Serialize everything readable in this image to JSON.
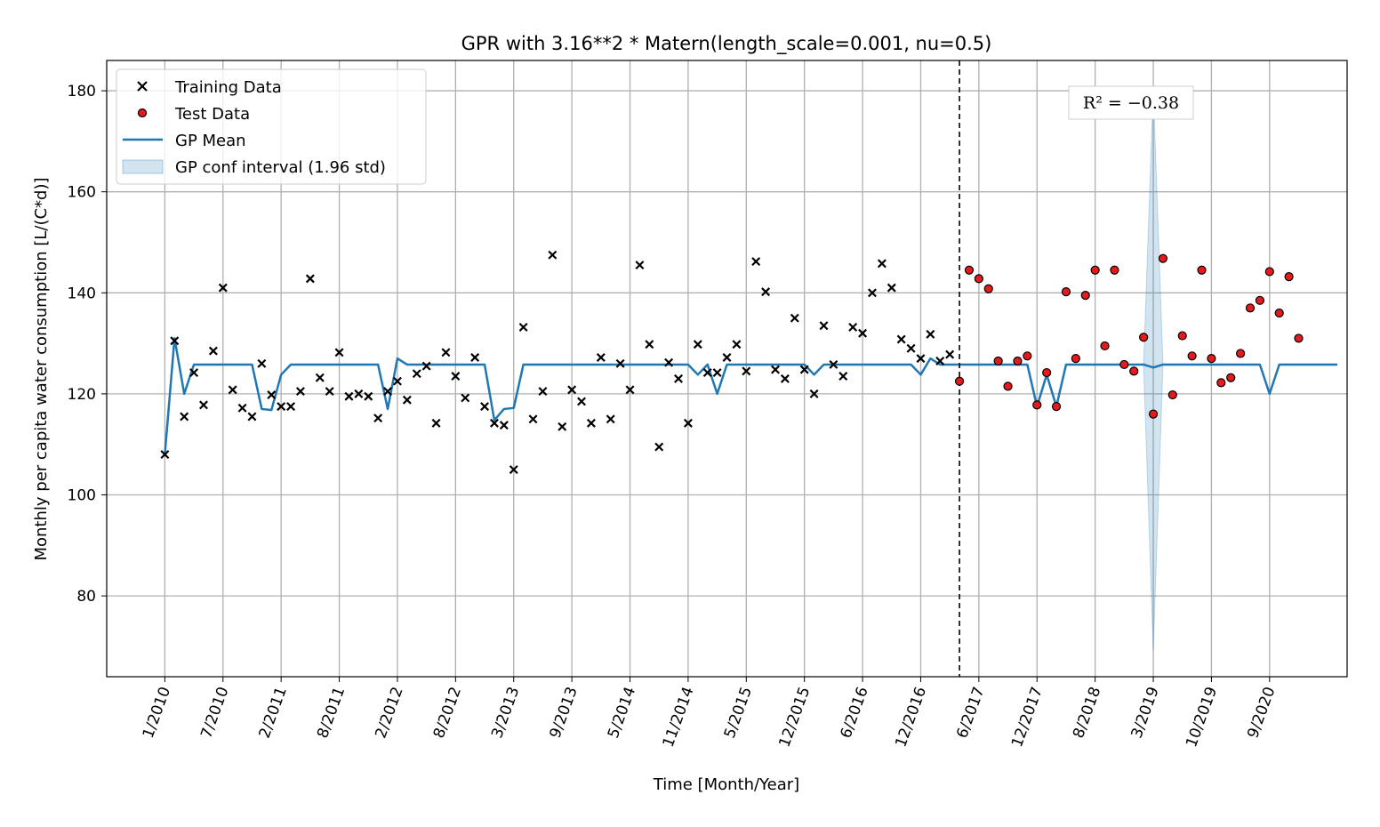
{
  "chart_data": {
    "type": "line",
    "title": "GPR with 3.16**2 * Matern(length_scale=0.001, nu=0.5)",
    "xlabel": "Time [Month/Year]",
    "ylabel": "Monthly per capita water consumption [L/(C*d)]",
    "x_ticks": [
      "1/2010",
      "7/2010",
      "2/2011",
      "8/2011",
      "2/2012",
      "8/2012",
      "3/2013",
      "9/2013",
      "5/2014",
      "11/2014",
      "5/2015",
      "12/2015",
      "6/2016",
      "12/2016",
      "6/2017",
      "12/2017",
      "8/2018",
      "3/2019",
      "10/2019",
      "9/2020"
    ],
    "x_tick_index": [
      0,
      6,
      12,
      18,
      24,
      30,
      36,
      42,
      48,
      54,
      60,
      66,
      72,
      78,
      84,
      90,
      96,
      102,
      108,
      114
    ],
    "xlim": [
      -6,
      122
    ],
    "ylim": [
      64,
      186
    ],
    "y_ticks": [
      80,
      100,
      120,
      140,
      160,
      180
    ],
    "grid": true,
    "legend_position": "top-left",
    "split_index": 82,
    "annotation": {
      "text": "R² = −0.38",
      "position": "top-right"
    },
    "legend": [
      {
        "label": "Training Data"
      },
      {
        "label": "Test Data"
      },
      {
        "label": "GP Mean"
      },
      {
        "label": "GP conf interval (1.96 std)"
      }
    ],
    "training": [
      108,
      130.5,
      115.5,
      124.2,
      117.8,
      128.5,
      141,
      120.8,
      117.2,
      115.5,
      126,
      119.8,
      117.5,
      117.5,
      120.5,
      142.8,
      123.2,
      120.5,
      128.2,
      119.5,
      120,
      119.5,
      115.2,
      120.5,
      122.5,
      118.8,
      124,
      125.5,
      114.2,
      128.2,
      123.5,
      119.2,
      127.2,
      117.5,
      114.2,
      113.8,
      105,
      133.2,
      115,
      120.5,
      147.5,
      113.5,
      120.8,
      118.5,
      114.2,
      127.2,
      115,
      126,
      120.8,
      145.5,
      129.8,
      109.5,
      126.2,
      123,
      114.2,
      129.8,
      124.2,
      124.2,
      127.2,
      129.8,
      124.5,
      146.2,
      140.2,
      124.8,
      123,
      135,
      124.8,
      120,
      133.5,
      125.8,
      123.5,
      133.2,
      132,
      140,
      145.8,
      141,
      130.8,
      129,
      127,
      131.8,
      126.5,
      127.8
    ],
    "test": [
      122.5,
      144.5,
      142.8,
      140.8,
      126.5,
      121.5,
      126.5,
      127.5,
      117.8,
      124.2,
      117.5,
      140.2,
      127,
      139.5,
      144.5,
      129.5,
      144.5,
      125.8,
      124.5,
      131.2,
      116,
      146.8,
      119.8,
      131.5,
      127.5,
      144.5,
      127,
      122.2,
      123.2,
      128,
      137,
      138.5,
      144.2,
      136,
      143.2,
      131
    ],
    "mean": [
      108,
      131,
      120,
      125.8,
      125.8,
      125.8,
      125.8,
      125.8,
      125.8,
      125.8,
      117,
      116.8,
      123.8,
      125.8,
      125.8,
      125.8,
      125.8,
      125.8,
      125.8,
      125.8,
      125.8,
      125.8,
      125.8,
      117,
      127,
      125.8,
      125.8,
      125.8,
      125.8,
      125.8,
      125.8,
      125.8,
      125.8,
      125.8,
      114.8,
      117,
      117.2,
      125.8,
      125.8,
      125.8,
      125.8,
      125.8,
      125.8,
      125.8,
      125.8,
      125.8,
      125.8,
      125.8,
      125.8,
      125.8,
      125.8,
      125.8,
      125.8,
      125.8,
      125.8,
      123.8,
      125.8,
      120,
      125.8,
      125.8,
      125.8,
      125.8,
      125.8,
      125.8,
      125.8,
      125.8,
      125.8,
      123.8,
      125.8,
      125.8,
      125.8,
      125.8,
      125.8,
      125.8,
      125.8,
      125.8,
      125.8,
      125.8,
      123.8,
      127,
      125.8,
      125.8,
      125.8,
      125.8,
      125.8,
      125.8,
      125.8,
      125.8,
      125.8,
      125.8,
      117.5,
      123.8,
      117.5,
      125.8,
      125.8,
      125.8,
      125.8,
      125.8,
      125.8,
      125.8,
      125.8,
      125.8,
      125.2,
      125.8,
      125.8,
      125.8,
      125.8,
      125.8,
      125.8,
      125.8,
      125.8,
      125.8,
      125.8,
      125.8,
      120,
      125.8,
      125.8,
      125.8,
      125.8,
      125.8,
      125.8,
      125.8
    ],
    "ci_band": {
      "x": [
        101,
        102,
        103
      ],
      "lower": [
        125.8,
        69,
        125.8
      ],
      "upper": [
        125.8,
        180.5,
        125.8
      ]
    },
    "colors": {
      "mean": "#1f77b4",
      "band": "#1f77b4",
      "test": "#e41a1c",
      "train": "#000000"
    }
  }
}
